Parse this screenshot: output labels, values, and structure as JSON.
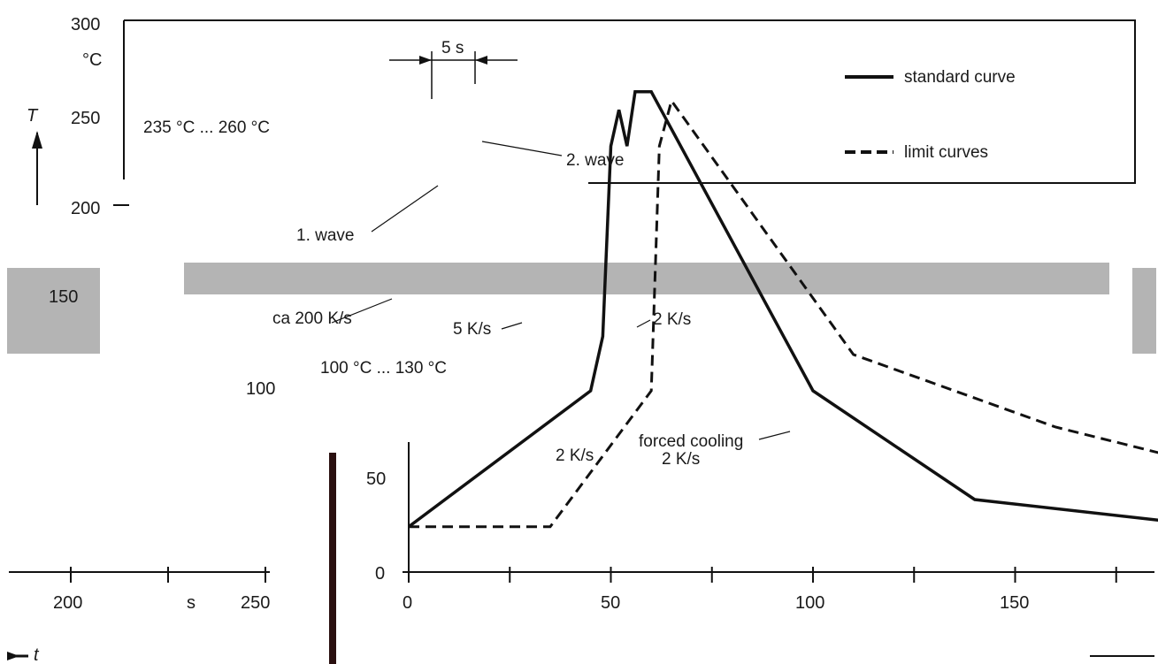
{
  "chart_data": {
    "type": "line",
    "title": "",
    "ylabel": "T",
    "yunit": "°C",
    "xlabel": "t",
    "xunit": "s",
    "ylim": [
      0,
      300
    ],
    "y_ticks_upper": [
      "300",
      "250",
      "200"
    ],
    "y_ticks_lower": [
      "150",
      "100",
      "50",
      "0"
    ],
    "x_ticks": [
      "0",
      "50",
      "100",
      "150",
      "200",
      "250"
    ],
    "x_unit_tick": "s",
    "legend": {
      "position": "top-right",
      "entries": [
        "standard curve",
        "limit curves"
      ]
    },
    "annotations": {
      "dwell": "5 s",
      "peak_range": "235 °C ... 260 °C",
      "wave1": "1. wave",
      "wave2": "2. wave",
      "rate_200": "ca 200 K/s",
      "rate_5": "5 K/s",
      "rate_2_upper": "2 K/s",
      "preheat_range": "100 °C ... 130 °C",
      "forced_cooling": "forced cooling",
      "rate_2_lower_a": "2 K/s",
      "rate_2_lower_b": "2 K/s"
    },
    "series": [
      {
        "name": "standard curve",
        "style": "solid",
        "points": [
          [
            0,
            25
          ],
          [
            45,
            100
          ],
          [
            48,
            130
          ],
          [
            50,
            235
          ],
          [
            52,
            255
          ],
          [
            54,
            235
          ],
          [
            56,
            265
          ],
          [
            60,
            265
          ],
          [
            100,
            100
          ],
          [
            140,
            40
          ],
          [
            200,
            25
          ]
        ]
      },
      {
        "name": "limit curves",
        "style": "dashed",
        "points": [
          [
            0,
            25
          ],
          [
            35,
            25
          ],
          [
            60,
            100
          ],
          [
            62,
            235
          ],
          [
            65,
            260
          ],
          [
            110,
            120
          ],
          [
            160,
            80
          ],
          [
            250,
            30
          ]
        ]
      }
    ]
  }
}
